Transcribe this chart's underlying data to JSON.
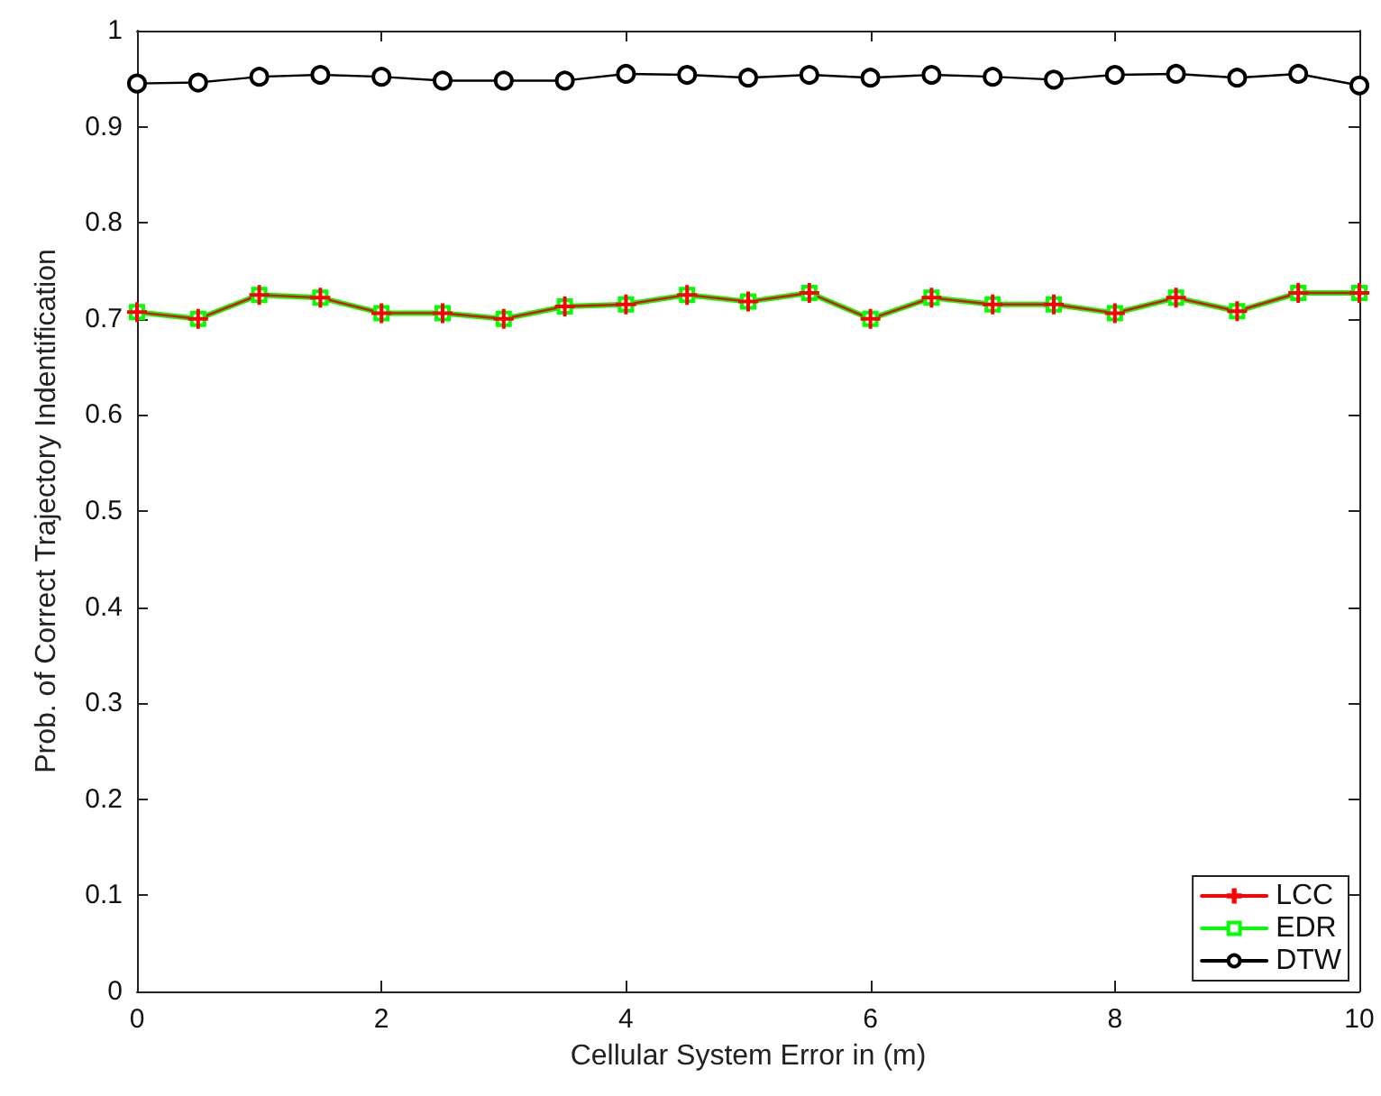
{
  "chart_data": {
    "type": "line",
    "xlabel": "Cellular System Error in (m)",
    "ylabel": "Prob. of Correct Trajectory Indentification",
    "x": [
      0,
      0.5,
      1,
      1.5,
      2,
      2.5,
      3,
      3.5,
      4,
      4.5,
      5,
      5.5,
      6,
      6.5,
      7,
      7.5,
      8,
      8.5,
      9,
      9.5,
      10
    ],
    "series": [
      {
        "name": "LCC",
        "color": "#ff0000",
        "marker": "cross",
        "values": [
          0.707,
          0.7,
          0.725,
          0.722,
          0.706,
          0.706,
          0.7,
          0.713,
          0.715,
          0.725,
          0.718,
          0.727,
          0.7,
          0.722,
          0.715,
          0.715,
          0.706,
          0.722,
          0.708,
          0.727,
          0.727
        ]
      },
      {
        "name": "EDR",
        "color": "#00ff00",
        "marker": "square",
        "values": [
          0.707,
          0.7,
          0.725,
          0.722,
          0.706,
          0.706,
          0.7,
          0.713,
          0.715,
          0.725,
          0.718,
          0.727,
          0.7,
          0.722,
          0.715,
          0.715,
          0.706,
          0.722,
          0.708,
          0.727,
          0.727
        ]
      },
      {
        "name": "DTW",
        "color": "#000000",
        "marker": "circle",
        "values": [
          0.945,
          0.946,
          0.952,
          0.954,
          0.952,
          0.948,
          0.948,
          0.948,
          0.955,
          0.954,
          0.951,
          0.954,
          0.951,
          0.954,
          0.952,
          0.949,
          0.954,
          0.955,
          0.951,
          0.955,
          0.943
        ]
      }
    ],
    "xlim": [
      0,
      10
    ],
    "xticks": [
      0,
      2,
      4,
      6,
      8,
      10
    ],
    "ylim": [
      0,
      1
    ],
    "yticks": [
      0,
      0.1,
      0.2,
      0.3,
      0.4,
      0.5,
      0.6,
      0.7,
      0.8,
      0.9,
      1
    ],
    "grid": false,
    "legend": "bottom right"
  }
}
